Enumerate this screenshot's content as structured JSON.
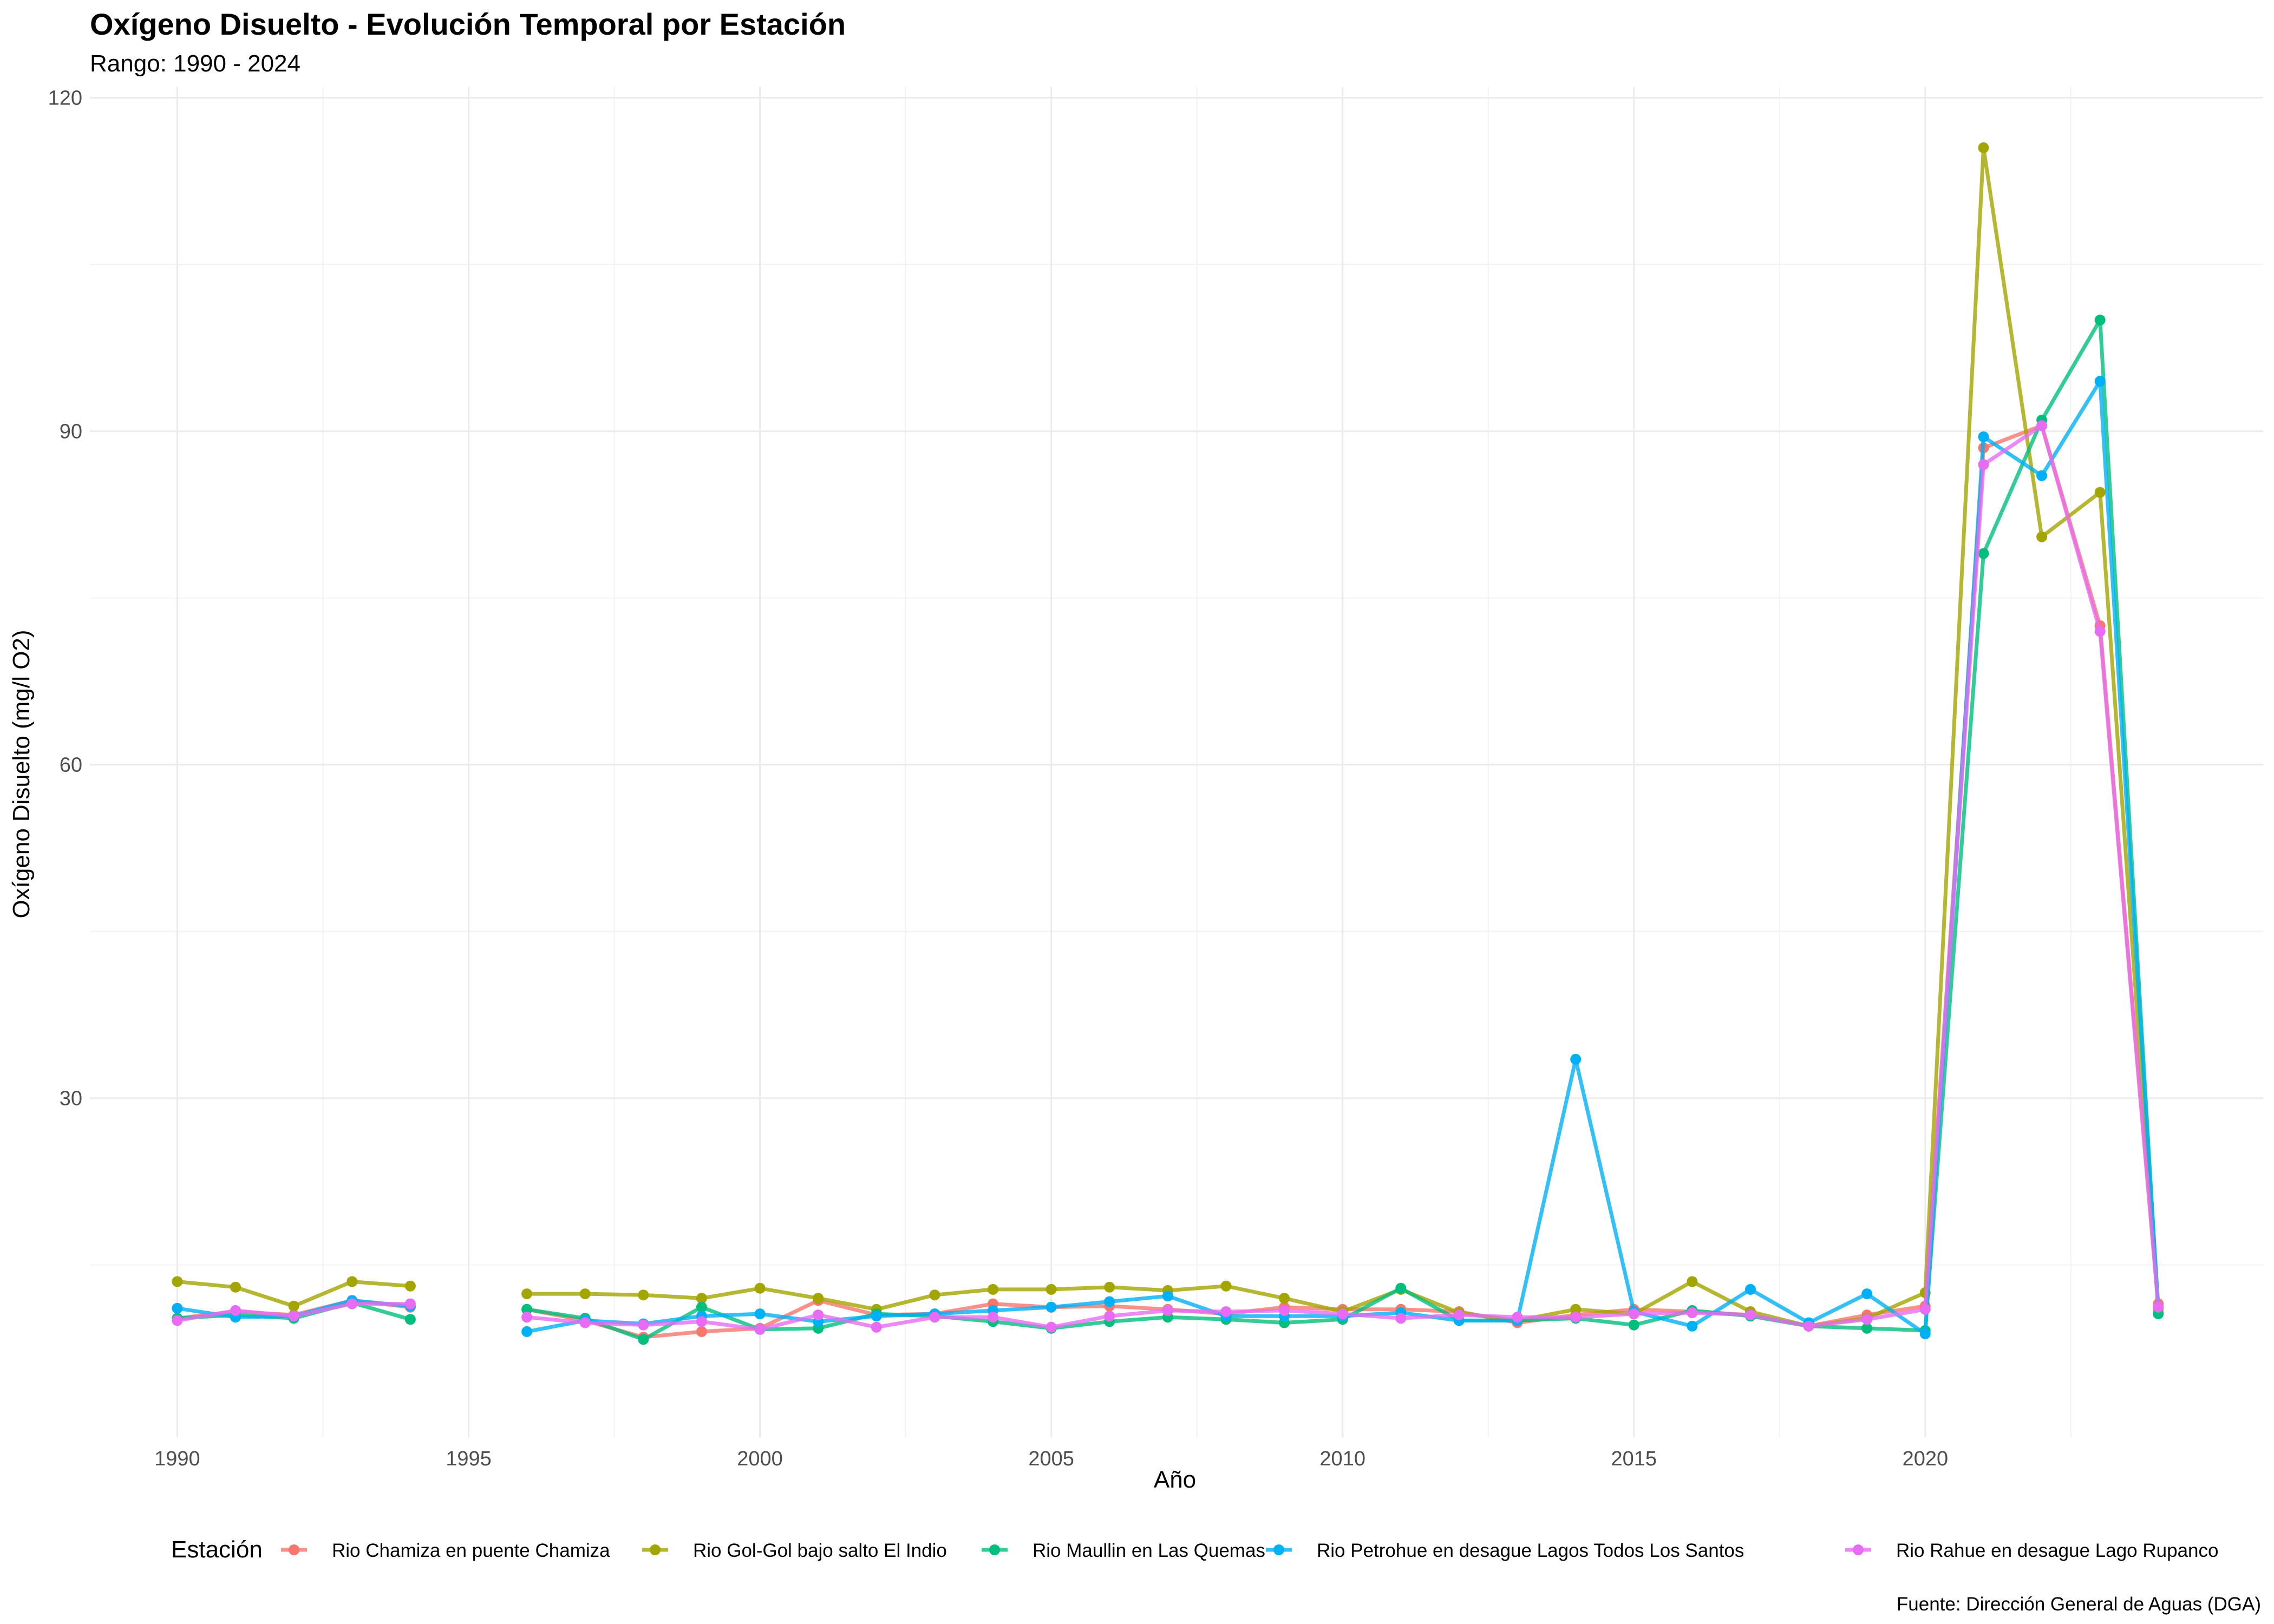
{
  "chart_data": {
    "type": "line",
    "title": "Oxígeno Disuelto - Evolución Temporal por Estación",
    "subtitle": "Rango: 1990 - 2024",
    "xlabel": "Año",
    "ylabel": "Oxígeno Disuelto (mg/l O2)",
    "caption": "Fuente: Dirección General de Aguas (DGA)",
    "xlim": [
      1988.5,
      2025.8
    ],
    "ylim": [
      -0.5,
      121
    ],
    "x_ticks": [
      1990,
      1995,
      2000,
      2005,
      2010,
      2015,
      2020
    ],
    "y_ticks": [
      30,
      60,
      90,
      120
    ],
    "grid": true,
    "legend": {
      "title": "Estación",
      "position": "bottom"
    },
    "series": [
      {
        "name": "Rio Chamiza en puente Chamiza",
        "color": "#F8766D",
        "points": [
          [
            1990,
            10.2
          ],
          [
            1991,
            10.8
          ],
          [
            1992,
            10.5
          ],
          [
            1993,
            11.8
          ],
          [
            1994,
            11.2
          ],
          [
            1996,
            11
          ],
          [
            1997,
            10
          ],
          [
            1998,
            8.5
          ],
          [
            1999,
            9
          ],
          [
            2000,
            9.3
          ],
          [
            2001,
            11.8
          ],
          [
            2002,
            10.5
          ],
          [
            2003,
            10.6
          ],
          [
            2004,
            11.5
          ],
          [
            2005,
            11.2
          ],
          [
            2006,
            11.3
          ],
          [
            2007,
            11
          ],
          [
            2008,
            10.6
          ],
          [
            2009,
            11.2
          ],
          [
            2010,
            11
          ],
          [
            2011,
            11
          ],
          [
            2012,
            10.8
          ],
          [
            2013,
            9.8
          ],
          [
            2014,
            10.5
          ],
          [
            2015,
            11
          ],
          [
            2016,
            10.8
          ],
          [
            2017,
            10.5
          ],
          [
            2018,
            9.5
          ],
          [
            2019,
            10.5
          ],
          [
            2020,
            11.3
          ],
          [
            2021,
            88.5
          ],
          [
            2022,
            90.5
          ],
          [
            2023,
            72.5
          ],
          [
            2024,
            11.5
          ]
        ]
      },
      {
        "name": "Rio Gol-Gol bajo salto El Indio",
        "color": "#A3A500",
        "points": [
          [
            1990,
            13.5
          ],
          [
            1991,
            13
          ],
          [
            1992,
            11.3
          ],
          [
            1993,
            13.5
          ],
          [
            1994,
            13.1
          ],
          [
            1996,
            12.4
          ],
          [
            1997,
            12.4
          ],
          [
            1998,
            12.3
          ],
          [
            1999,
            12
          ],
          [
            2000,
            12.9
          ],
          [
            2001,
            12
          ],
          [
            2002,
            11
          ],
          [
            2003,
            12.3
          ],
          [
            2004,
            12.8
          ],
          [
            2005,
            12.8
          ],
          [
            2006,
            13
          ],
          [
            2007,
            12.7
          ],
          [
            2008,
            13.1
          ],
          [
            2009,
            12
          ],
          [
            2010,
            10.8
          ],
          [
            2011,
            12.8
          ],
          [
            2012,
            10.7
          ],
          [
            2013,
            10
          ],
          [
            2014,
            11
          ],
          [
            2015,
            10.6
          ],
          [
            2016,
            13.5
          ],
          [
            2017,
            10.8
          ],
          [
            2018,
            9.5
          ],
          [
            2019,
            10.2
          ],
          [
            2020,
            12.5
          ],
          [
            2021,
            115.5
          ],
          [
            2022,
            80.5
          ],
          [
            2023,
            84.5
          ],
          [
            2024,
            11
          ]
        ]
      },
      {
        "name": "Rio Maullin en Las Quemas",
        "color": "#00BF7D",
        "points": [
          [
            1990,
            10.2
          ],
          [
            1991,
            10.5
          ],
          [
            1992,
            10.2
          ],
          [
            1993,
            11.6
          ],
          [
            1994,
            10.1
          ],
          [
            1996,
            11
          ],
          [
            1997,
            10.2
          ],
          [
            1998,
            8.3
          ],
          [
            1999,
            11.2
          ],
          [
            2000,
            9.2
          ],
          [
            2001,
            9.3
          ],
          [
            2002,
            10.6
          ],
          [
            2003,
            10.4
          ],
          [
            2004,
            9.9
          ],
          [
            2005,
            9.3
          ],
          [
            2006,
            9.9
          ],
          [
            2007,
            10.3
          ],
          [
            2008,
            10.1
          ],
          [
            2009,
            9.8
          ],
          [
            2010,
            10.1
          ],
          [
            2011,
            12.9
          ],
          [
            2012,
            10
          ],
          [
            2013,
            10
          ],
          [
            2014,
            10.2
          ],
          [
            2015,
            9.6
          ],
          [
            2016,
            10.9
          ],
          [
            2017,
            10.4
          ],
          [
            2018,
            9.5
          ],
          [
            2019,
            9.3
          ],
          [
            2020,
            9.1
          ],
          [
            2021,
            79
          ],
          [
            2022,
            91
          ],
          [
            2023,
            100
          ],
          [
            2024,
            10.6
          ]
        ]
      },
      {
        "name": "Rio Petrohue en desague Lagos Todos Los Santos",
        "color": "#00B0F6",
        "points": [
          [
            1990,
            11.1
          ],
          [
            1991,
            10.3
          ],
          [
            1992,
            10.4
          ],
          [
            1993,
            11.8
          ],
          [
            1994,
            11.3
          ],
          [
            1996,
            9
          ],
          [
            1997,
            10
          ],
          [
            1998,
            9.7
          ],
          [
            1999,
            10.4
          ],
          [
            2000,
            10.6
          ],
          [
            2001,
            9.9
          ],
          [
            2002,
            10.4
          ],
          [
            2003,
            10.6
          ],
          [
            2004,
            10.9
          ],
          [
            2005,
            11.2
          ],
          [
            2006,
            11.7
          ],
          [
            2007,
            12.2
          ],
          [
            2008,
            10.4
          ],
          [
            2009,
            10.4
          ],
          [
            2010,
            10.4
          ],
          [
            2011,
            10.7
          ],
          [
            2012,
            10
          ],
          [
            2013,
            10
          ],
          [
            2014,
            33.5
          ],
          [
            2015,
            10.8
          ],
          [
            2016,
            9.5
          ],
          [
            2017,
            12.8
          ],
          [
            2018,
            9.8
          ],
          [
            2019,
            12.4
          ],
          [
            2020,
            8.8
          ],
          [
            2021,
            89.5
          ],
          [
            2022,
            86
          ],
          [
            2023,
            94.5
          ],
          [
            2024,
            11.2
          ]
        ]
      },
      {
        "name": "Rio Rahue en desague Lago Rupanco",
        "color": "#E76BF3",
        "points": [
          [
            1990,
            10
          ],
          [
            1991,
            10.9
          ],
          [
            1992,
            10.4
          ],
          [
            1993,
            11.5
          ],
          [
            1994,
            11.5
          ],
          [
            1996,
            10.3
          ],
          [
            1997,
            9.8
          ],
          [
            1998,
            9.6
          ],
          [
            1999,
            9.9
          ],
          [
            2000,
            9.2
          ],
          [
            2001,
            10.5
          ],
          [
            2002,
            9.4
          ],
          [
            2003,
            10.3
          ],
          [
            2004,
            10.3
          ],
          [
            2005,
            9.4
          ],
          [
            2006,
            10.4
          ],
          [
            2007,
            10.9
          ],
          [
            2008,
            10.8
          ],
          [
            2009,
            10.9
          ],
          [
            2010,
            10.6
          ],
          [
            2011,
            10.2
          ],
          [
            2012,
            10.5
          ],
          [
            2013,
            10.3
          ],
          [
            2014,
            10.3
          ],
          [
            2015,
            10.6
          ],
          [
            2016,
            10.7
          ],
          [
            2017,
            10.5
          ],
          [
            2018,
            9.5
          ],
          [
            2019,
            10.1
          ],
          [
            2020,
            11
          ],
          [
            2021,
            87
          ],
          [
            2022,
            90.5
          ],
          [
            2023,
            72
          ],
          [
            2024,
            11.2
          ]
        ]
      }
    ]
  }
}
